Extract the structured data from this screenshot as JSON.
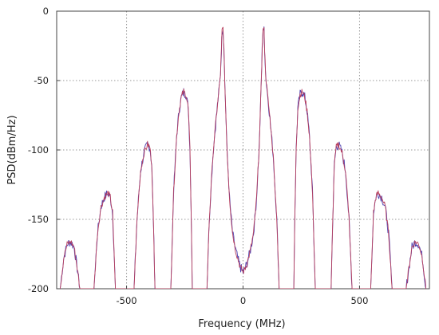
{
  "chart_data": {
    "type": "line",
    "xlabel": "Frequency (MHz)",
    "ylabel": "PSD(dBm/Hz)",
    "xlim": [
      -800,
      800
    ],
    "ylim": [
      -200,
      0
    ],
    "x_ticks": [
      -500,
      0,
      500
    ],
    "x_tick_labels": [
      "-500",
      "0",
      "500"
    ],
    "y_ticks": [
      0,
      -50,
      -100,
      -150,
      -200
    ],
    "y_tick_labels": [
      "0",
      "-50",
      "-100",
      "-150",
      "-200"
    ],
    "grid": true,
    "grid_style": "dotted",
    "legend": "none",
    "description_of_data": "Power spectral density lobes symmetric about 0 MHz",
    "series": [
      {
        "color": "#4b3fb0",
        "points": [
          [
            -785,
            -200
          ],
          [
            -770,
            -178
          ],
          [
            -755,
            -168
          ],
          [
            -740,
            -166
          ],
          [
            -725,
            -170
          ],
          [
            -712,
            -185
          ],
          [
            -700,
            -200
          ],
          [
            -640,
            -200
          ],
          [
            -625,
            -160
          ],
          [
            -610,
            -141
          ],
          [
            -595,
            -134
          ],
          [
            -580,
            -131
          ],
          [
            -570,
            -134
          ],
          [
            -560,
            -145
          ],
          [
            -548,
            -200
          ],
          [
            -468,
            -200
          ],
          [
            -455,
            -150
          ],
          [
            -440,
            -115
          ],
          [
            -425,
            -102
          ],
          [
            -410,
            -96
          ],
          [
            -400,
            -98
          ],
          [
            -392,
            -110
          ],
          [
            -385,
            -150
          ],
          [
            -378,
            -200
          ],
          [
            -310,
            -200
          ],
          [
            -298,
            -130
          ],
          [
            -285,
            -90
          ],
          [
            -275,
            -72
          ],
          [
            -265,
            -62
          ],
          [
            -255,
            -58
          ],
          [
            -245,
            -60
          ],
          [
            -235,
            -70
          ],
          [
            -228,
            -100
          ],
          [
            -222,
            -150
          ],
          [
            -218,
            -200
          ],
          [
            -155,
            -200
          ],
          [
            -145,
            -150
          ],
          [
            -130,
            -105
          ],
          [
            -118,
            -82
          ],
          [
            -110,
            -68
          ],
          [
            -102,
            -55
          ],
          [
            -97,
            -45
          ],
          [
            -93,
            -28
          ],
          [
            -90,
            -14
          ],
          [
            -86,
            -12
          ],
          [
            -82,
            -28
          ],
          [
            -78,
            -52
          ],
          [
            -70,
            -95
          ],
          [
            -58,
            -135
          ],
          [
            -45,
            -160
          ],
          [
            -32,
            -172
          ],
          [
            -20,
            -180
          ],
          [
            -10,
            -185
          ],
          [
            0,
            -188
          ],
          [
            10,
            -185
          ],
          [
            20,
            -180
          ],
          [
            32,
            -172
          ],
          [
            45,
            -160
          ],
          [
            58,
            -135
          ],
          [
            70,
            -95
          ],
          [
            78,
            -52
          ],
          [
            82,
            -28
          ],
          [
            86,
            -12
          ],
          [
            90,
            -14
          ],
          [
            93,
            -28
          ],
          [
            97,
            -45
          ],
          [
            102,
            -55
          ],
          [
            110,
            -68
          ],
          [
            118,
            -82
          ],
          [
            130,
            -105
          ],
          [
            145,
            -150
          ],
          [
            155,
            -200
          ],
          [
            218,
            -200
          ],
          [
            222,
            -150
          ],
          [
            228,
            -100
          ],
          [
            235,
            -70
          ],
          [
            245,
            -60
          ],
          [
            255,
            -58
          ],
          [
            265,
            -62
          ],
          [
            275,
            -72
          ],
          [
            285,
            -90
          ],
          [
            298,
            -130
          ],
          [
            310,
            -200
          ],
          [
            378,
            -200
          ],
          [
            385,
            -150
          ],
          [
            392,
            -110
          ],
          [
            400,
            -98
          ],
          [
            410,
            -96
          ],
          [
            425,
            -102
          ],
          [
            440,
            -115
          ],
          [
            455,
            -150
          ],
          [
            468,
            -200
          ],
          [
            548,
            -200
          ],
          [
            560,
            -145
          ],
          [
            570,
            -134
          ],
          [
            580,
            -131
          ],
          [
            595,
            -134
          ],
          [
            610,
            -141
          ],
          [
            625,
            -160
          ],
          [
            640,
            -200
          ],
          [
            700,
            -200
          ],
          [
            712,
            -185
          ],
          [
            725,
            -170
          ],
          [
            740,
            -166
          ],
          [
            755,
            -168
          ],
          [
            770,
            -178
          ],
          [
            785,
            -200
          ]
        ]
      },
      {
        "color": "#b8405e",
        "points": [
          [
            -785,
            -200
          ],
          [
            -770,
            -178
          ],
          [
            -755,
            -168
          ],
          [
            -740,
            -166
          ],
          [
            -725,
            -170
          ],
          [
            -712,
            -185
          ],
          [
            -700,
            -200
          ],
          [
            -640,
            -200
          ],
          [
            -625,
            -160
          ],
          [
            -610,
            -141
          ],
          [
            -595,
            -134
          ],
          [
            -580,
            -131
          ],
          [
            -570,
            -134
          ],
          [
            -560,
            -145
          ],
          [
            -548,
            -200
          ],
          [
            -468,
            -200
          ],
          [
            -455,
            -150
          ],
          [
            -440,
            -115
          ],
          [
            -425,
            -102
          ],
          [
            -410,
            -96
          ],
          [
            -400,
            -98
          ],
          [
            -392,
            -110
          ],
          [
            -385,
            -150
          ],
          [
            -378,
            -200
          ],
          [
            -310,
            -200
          ],
          [
            -298,
            -130
          ],
          [
            -285,
            -90
          ],
          [
            -275,
            -72
          ],
          [
            -265,
            -62
          ],
          [
            -255,
            -58
          ],
          [
            -245,
            -60
          ],
          [
            -235,
            -70
          ],
          [
            -228,
            -100
          ],
          [
            -222,
            -150
          ],
          [
            -218,
            -200
          ],
          [
            -155,
            -200
          ],
          [
            -145,
            -150
          ],
          [
            -130,
            -105
          ],
          [
            -118,
            -82
          ],
          [
            -110,
            -68
          ],
          [
            -102,
            -55
          ],
          [
            -97,
            -45
          ],
          [
            -93,
            -28
          ],
          [
            -90,
            -14
          ],
          [
            -86,
            -12
          ],
          [
            -82,
            -28
          ],
          [
            -78,
            -52
          ],
          [
            -70,
            -95
          ],
          [
            -58,
            -135
          ],
          [
            -45,
            -160
          ],
          [
            -32,
            -172
          ],
          [
            -20,
            -180
          ],
          [
            -10,
            -185
          ],
          [
            0,
            -188
          ],
          [
            10,
            -185
          ],
          [
            20,
            -180
          ],
          [
            32,
            -172
          ],
          [
            45,
            -160
          ],
          [
            58,
            -135
          ],
          [
            70,
            -95
          ],
          [
            78,
            -52
          ],
          [
            82,
            -28
          ],
          [
            86,
            -12
          ],
          [
            90,
            -14
          ],
          [
            93,
            -28
          ],
          [
            97,
            -45
          ],
          [
            102,
            -55
          ],
          [
            110,
            -68
          ],
          [
            118,
            -82
          ],
          [
            130,
            -105
          ],
          [
            145,
            -150
          ],
          [
            155,
            -200
          ],
          [
            218,
            -200
          ],
          [
            222,
            -150
          ],
          [
            228,
            -100
          ],
          [
            235,
            -70
          ],
          [
            245,
            -60
          ],
          [
            255,
            -58
          ],
          [
            265,
            -62
          ],
          [
            275,
            -72
          ],
          [
            285,
            -90
          ],
          [
            298,
            -130
          ],
          [
            310,
            -200
          ],
          [
            378,
            -200
          ],
          [
            385,
            -150
          ],
          [
            392,
            -110
          ],
          [
            400,
            -98
          ],
          [
            410,
            -96
          ],
          [
            425,
            -102
          ],
          [
            440,
            -115
          ],
          [
            455,
            -150
          ],
          [
            468,
            -200
          ],
          [
            548,
            -200
          ],
          [
            560,
            -145
          ],
          [
            570,
            -134
          ],
          [
            580,
            -131
          ],
          [
            595,
            -134
          ],
          [
            610,
            -141
          ],
          [
            625,
            -160
          ],
          [
            640,
            -200
          ],
          [
            700,
            -200
          ],
          [
            712,
            -185
          ],
          [
            725,
            -170
          ],
          [
            740,
            -166
          ],
          [
            755,
            -168
          ],
          [
            770,
            -178
          ],
          [
            785,
            -200
          ]
        ]
      }
    ]
  }
}
